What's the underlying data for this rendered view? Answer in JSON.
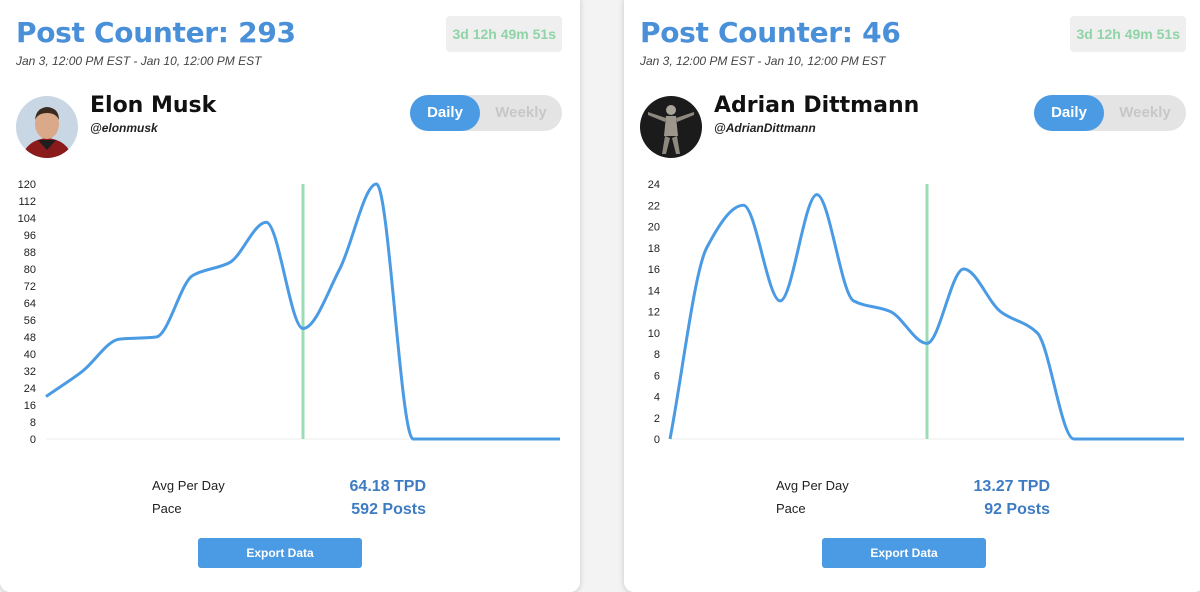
{
  "colors": {
    "accent_blue": "#4a90d9",
    "line_blue": "#4a9be4",
    "marker_green": "#9bdcb4",
    "countdown_green": "#8fd4a7"
  },
  "cards": [
    {
      "title": "Post Counter: 293",
      "range": "Jan 3, 12:00 PM EST - Jan 10, 12:00 PM EST",
      "countdown": "3d 12h 49m 51s",
      "name": "Elon Musk",
      "handle": "@elonmusk",
      "avatar_icon": "portrait-photo-icon",
      "toggle": {
        "daily": "Daily",
        "weekly": "Weekly",
        "selected": "Daily"
      },
      "stats": {
        "avg_label": "Avg Per Day",
        "avg_value": "64.18 TPD",
        "pace_label": "Pace",
        "pace_value": "592 Posts"
      },
      "export_label": "Export Data"
    },
    {
      "title": "Post Counter: 46",
      "range": "Jan 3, 12:00 PM EST - Jan 10, 12:00 PM EST",
      "countdown": "3d 12h 49m 51s",
      "name": "Adrian Dittmann",
      "handle": "@AdrianDittmann",
      "avatar_icon": "statue-photo-icon",
      "toggle": {
        "daily": "Daily",
        "weekly": "Weekly",
        "selected": "Daily"
      },
      "stats": {
        "avg_label": "Avg Per Day",
        "avg_value": "13.27 TPD",
        "pace_label": "Pace",
        "pace_value": "92 Posts"
      },
      "export_label": "Export Data"
    }
  ],
  "chart_data": [
    {
      "type": "line",
      "title": "",
      "xlabel": "",
      "ylabel": "",
      "ylim": [
        0,
        120
      ],
      "yticks": [
        0,
        8,
        16,
        24,
        32,
        40,
        48,
        56,
        64,
        72,
        80,
        88,
        96,
        104,
        112,
        120
      ],
      "x": [
        0,
        0.5,
        1,
        1.5,
        2,
        2.5,
        3,
        3.5,
        4,
        4.5,
        5,
        5.5,
        6,
        6.5,
        7
      ],
      "series": [
        {
          "values": [
            20,
            32,
            47,
            48,
            77,
            83,
            102,
            52,
            80,
            120,
            0,
            0,
            0,
            0,
            0
          ]
        }
      ],
      "current_marker_x": 3.5,
      "grid": false
    },
    {
      "type": "line",
      "title": "",
      "xlabel": "",
      "ylabel": "",
      "ylim": [
        0,
        24
      ],
      "yticks": [
        0,
        2,
        4,
        6,
        8,
        10,
        12,
        14,
        16,
        18,
        20,
        22,
        24
      ],
      "x": [
        0,
        0.5,
        1,
        1.5,
        2,
        2.5,
        3,
        3.5,
        4,
        4.5,
        5,
        5.5,
        6,
        6.5,
        7
      ],
      "series": [
        {
          "values": [
            0,
            18,
            22,
            13,
            23,
            13,
            12,
            9,
            16,
            12,
            10,
            0,
            0,
            0,
            0
          ]
        }
      ],
      "current_marker_x": 3.5,
      "grid": false
    }
  ]
}
